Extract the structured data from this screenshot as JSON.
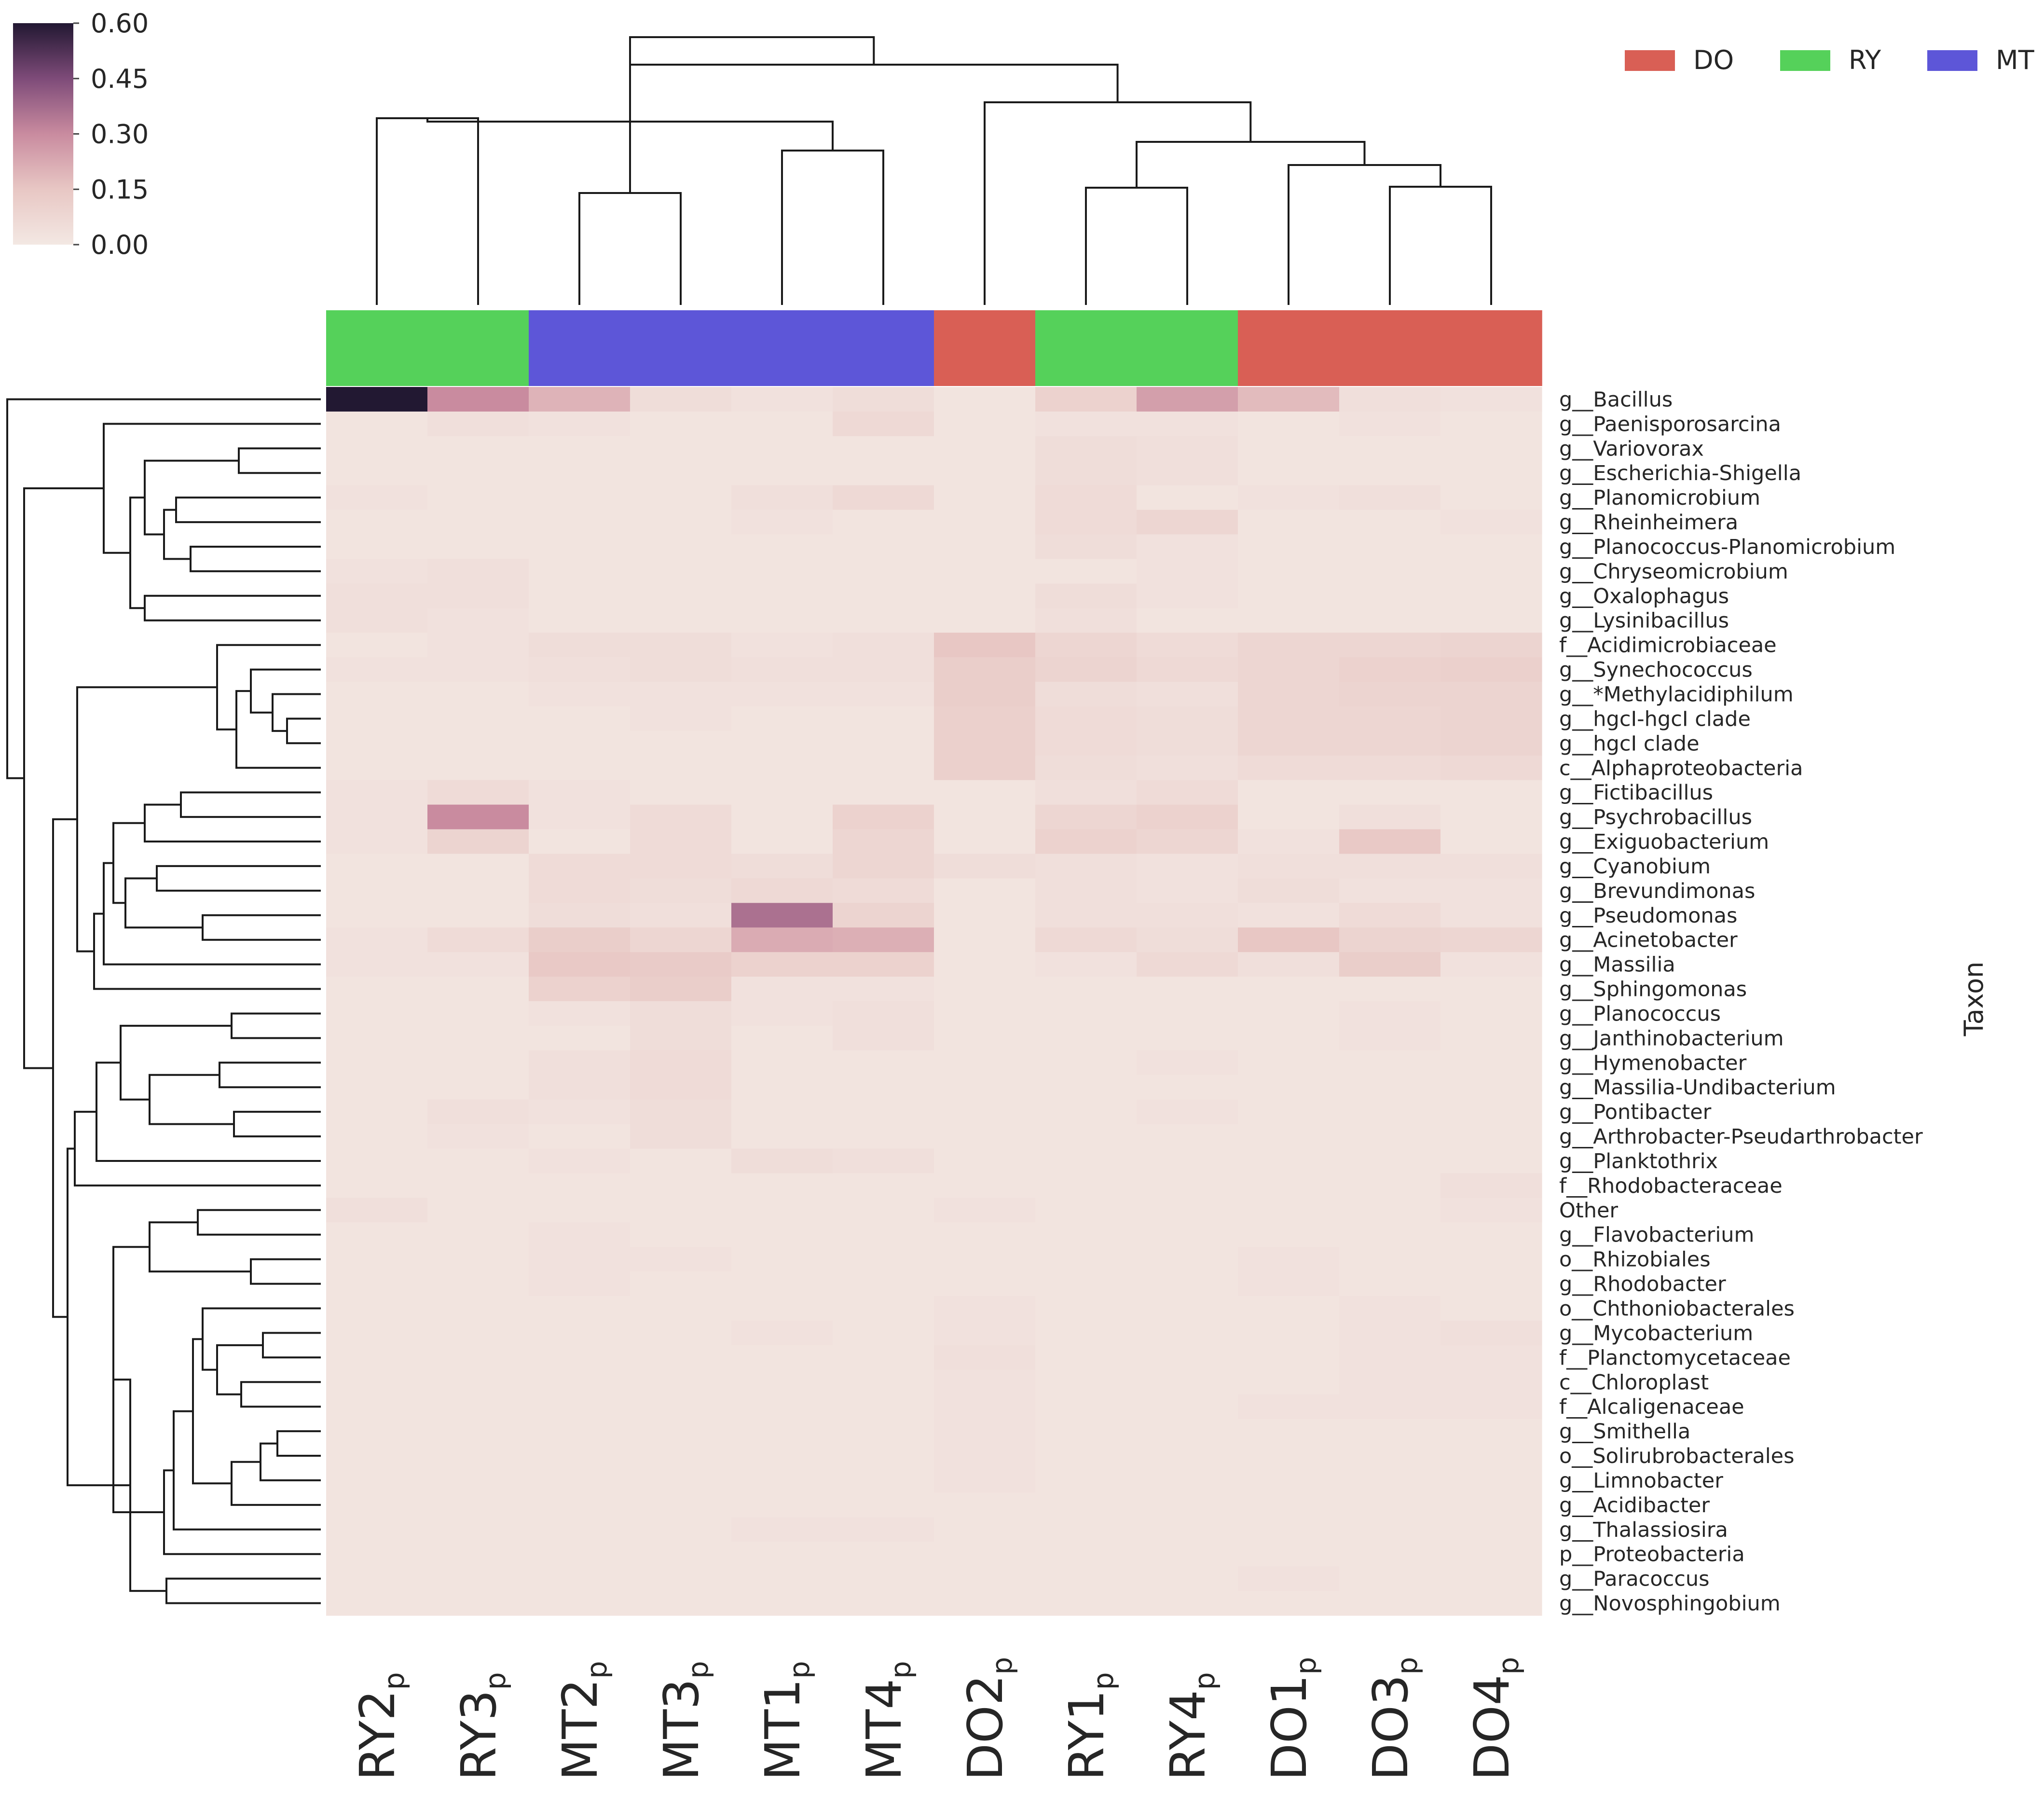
{
  "chart_data": {
    "type": "heatmap",
    "title": "",
    "xlabel": "",
    "ylabel": "Taxon",
    "colorbar": {
      "ticks": [
        "0.00",
        "0.15",
        "0.30",
        "0.45",
        "0.60"
      ],
      "min": 0,
      "max": 0.6,
      "colors": [
        "#f3e8e3",
        "#e8c7c4",
        "#c98b9f",
        "#7e4b79",
        "#221832"
      ]
    },
    "legend": [
      {
        "label": "DO",
        "color": "#d95f55"
      },
      {
        "label": "RY",
        "color": "#55d15a"
      },
      {
        "label": "MT",
        "color": "#5d56d8"
      }
    ],
    "columns": [
      {
        "name": "RY2",
        "sub": "p",
        "group": "RY"
      },
      {
        "name": "RY3",
        "sub": "p",
        "group": "RY"
      },
      {
        "name": "MT2",
        "sub": "p",
        "group": "MT"
      },
      {
        "name": "MT3",
        "sub": "p",
        "group": "MT"
      },
      {
        "name": "MT1",
        "sub": "p",
        "group": "MT"
      },
      {
        "name": "MT4",
        "sub": "p",
        "group": "MT"
      },
      {
        "name": "DO2",
        "sub": "p",
        "group": "DO"
      },
      {
        "name": "RY1",
        "sub": "p",
        "group": "RY"
      },
      {
        "name": "RY4",
        "sub": "p",
        "group": "RY"
      },
      {
        "name": "DO1",
        "sub": "p",
        "group": "DO"
      },
      {
        "name": "DO3",
        "sub": "p",
        "group": "DO"
      },
      {
        "name": "DO4",
        "sub": "p",
        "group": "DO"
      }
    ],
    "rows": [
      "g__Bacillus",
      "g__Paenisporosarcina",
      "g__Variovorax",
      "g__Escherichia-Shigella",
      "g__Planomicrobium",
      "g__Rheinheimera",
      "g__Planococcus-Planomicrobium",
      "g__Chryseomicrobium",
      "g__Oxalophagus",
      "g__Lysinibacillus",
      "f__Acidimicrobiaceae",
      "g__Synechococcus",
      "g__*Methylacidiphilum",
      "g__hgcI-hgcI clade",
      "g__hgcI clade",
      "c__Alphaproteobacteria",
      "g__Fictibacillus",
      "g__Psychrobacillus",
      "g__Exiguobacterium",
      "g__Cyanobium",
      "g__Brevundimonas",
      "g__Pseudomonas",
      "g__Acinetobacter",
      "g__Massilia",
      "g__Sphingomonas",
      "g__Planococcus",
      "g__Janthinobacterium",
      "g__Hymenobacter",
      "g__Massilia-Undibacterium",
      "g__Pontibacter",
      "g__Arthrobacter-Pseudarthrobacter",
      "g__Planktothrix",
      "f__Rhodobacteraceae",
      "Other",
      "g__Flavobacterium",
      "o__Rhizobiales",
      "g__Rhodobacter",
      "o__Chthoniobacterales",
      "g__Mycobacterium",
      "f__Planctomycetaceae",
      "c__Chloroplast",
      "f__Alcaligenaceae",
      "g__Smithella",
      "o__Solirubrobacterales",
      "g__Limnobacter",
      "g__Acidibacter",
      "g__Thalassiosira",
      "p__Proteobacteria",
      "g__Paracoccus",
      "g__Novosphingobium"
    ],
    "values": [
      [
        0.6,
        0.3,
        0.2,
        0.05,
        0.03,
        0.05,
        0.02,
        0.1,
        0.25,
        0.18,
        0.04,
        0.03
      ],
      [
        0.02,
        0.04,
        0.03,
        0.02,
        0.02,
        0.07,
        0.02,
        0.03,
        0.03,
        0.02,
        0.03,
        0.02
      ],
      [
        0.02,
        0.02,
        0.02,
        0.02,
        0.02,
        0.02,
        0.02,
        0.05,
        0.04,
        0.02,
        0.02,
        0.02
      ],
      [
        0.02,
        0.02,
        0.02,
        0.02,
        0.02,
        0.02,
        0.02,
        0.05,
        0.04,
        0.02,
        0.02,
        0.02
      ],
      [
        0.03,
        0.02,
        0.02,
        0.02,
        0.04,
        0.07,
        0.02,
        0.06,
        0.02,
        0.03,
        0.04,
        0.02
      ],
      [
        0.02,
        0.02,
        0.02,
        0.02,
        0.03,
        0.02,
        0.02,
        0.06,
        0.08,
        0.02,
        0.02,
        0.03
      ],
      [
        0.02,
        0.02,
        0.02,
        0.02,
        0.02,
        0.02,
        0.02,
        0.05,
        0.03,
        0.02,
        0.02,
        0.02
      ],
      [
        0.03,
        0.04,
        0.02,
        0.02,
        0.02,
        0.02,
        0.02,
        0.02,
        0.03,
        0.02,
        0.02,
        0.02
      ],
      [
        0.04,
        0.04,
        0.02,
        0.02,
        0.02,
        0.02,
        0.02,
        0.05,
        0.03,
        0.02,
        0.02,
        0.02
      ],
      [
        0.04,
        0.03,
        0.02,
        0.02,
        0.02,
        0.02,
        0.02,
        0.04,
        0.02,
        0.02,
        0.02,
        0.02
      ],
      [
        0.02,
        0.03,
        0.05,
        0.05,
        0.03,
        0.04,
        0.15,
        0.08,
        0.06,
        0.08,
        0.08,
        0.09
      ],
      [
        0.03,
        0.03,
        0.04,
        0.05,
        0.04,
        0.04,
        0.12,
        0.09,
        0.07,
        0.08,
        0.1,
        0.11
      ],
      [
        0.02,
        0.02,
        0.03,
        0.03,
        0.03,
        0.03,
        0.12,
        0.05,
        0.04,
        0.08,
        0.09,
        0.09
      ],
      [
        0.02,
        0.02,
        0.02,
        0.03,
        0.02,
        0.02,
        0.11,
        0.06,
        0.05,
        0.08,
        0.08,
        0.09
      ],
      [
        0.02,
        0.02,
        0.02,
        0.02,
        0.02,
        0.02,
        0.11,
        0.06,
        0.05,
        0.08,
        0.08,
        0.09
      ],
      [
        0.02,
        0.02,
        0.02,
        0.02,
        0.02,
        0.02,
        0.11,
        0.05,
        0.04,
        0.06,
        0.06,
        0.07
      ],
      [
        0.03,
        0.06,
        0.03,
        0.02,
        0.02,
        0.02,
        0.02,
        0.04,
        0.06,
        0.02,
        0.02,
        0.02
      ],
      [
        0.03,
        0.3,
        0.03,
        0.06,
        0.02,
        0.1,
        0.02,
        0.08,
        0.1,
        0.02,
        0.04,
        0.02
      ],
      [
        0.03,
        0.09,
        0.02,
        0.06,
        0.02,
        0.08,
        0.02,
        0.1,
        0.08,
        0.03,
        0.14,
        0.02
      ],
      [
        0.02,
        0.02,
        0.06,
        0.06,
        0.05,
        0.08,
        0.05,
        0.04,
        0.03,
        0.04,
        0.04,
        0.04
      ],
      [
        0.02,
        0.02,
        0.06,
        0.05,
        0.07,
        0.06,
        0.02,
        0.04,
        0.03,
        0.05,
        0.03,
        0.03
      ],
      [
        0.02,
        0.02,
        0.05,
        0.04,
        0.36,
        0.09,
        0.02,
        0.04,
        0.04,
        0.03,
        0.06,
        0.03
      ],
      [
        0.03,
        0.06,
        0.12,
        0.08,
        0.22,
        0.21,
        0.02,
        0.07,
        0.05,
        0.15,
        0.09,
        0.08
      ],
      [
        0.03,
        0.03,
        0.14,
        0.13,
        0.1,
        0.1,
        0.02,
        0.03,
        0.07,
        0.04,
        0.12,
        0.03
      ],
      [
        0.02,
        0.02,
        0.1,
        0.12,
        0.03,
        0.03,
        0.02,
        0.02,
        0.02,
        0.02,
        0.02,
        0.02
      ],
      [
        0.02,
        0.02,
        0.03,
        0.05,
        0.03,
        0.04,
        0.02,
        0.02,
        0.02,
        0.02,
        0.03,
        0.02
      ],
      [
        0.02,
        0.02,
        0.02,
        0.05,
        0.02,
        0.04,
        0.02,
        0.02,
        0.02,
        0.02,
        0.03,
        0.02
      ],
      [
        0.02,
        0.02,
        0.04,
        0.06,
        0.02,
        0.02,
        0.02,
        0.02,
        0.03,
        0.02,
        0.02,
        0.02
      ],
      [
        0.02,
        0.02,
        0.04,
        0.06,
        0.02,
        0.02,
        0.02,
        0.02,
        0.02,
        0.02,
        0.02,
        0.02
      ],
      [
        0.02,
        0.04,
        0.03,
        0.05,
        0.02,
        0.02,
        0.02,
        0.02,
        0.03,
        0.02,
        0.02,
        0.02
      ],
      [
        0.02,
        0.03,
        0.02,
        0.05,
        0.02,
        0.02,
        0.02,
        0.02,
        0.02,
        0.02,
        0.02,
        0.02
      ],
      [
        0.02,
        0.02,
        0.03,
        0.02,
        0.05,
        0.04,
        0.02,
        0.02,
        0.02,
        0.02,
        0.02,
        0.02
      ],
      [
        0.02,
        0.02,
        0.02,
        0.02,
        0.02,
        0.02,
        0.02,
        0.02,
        0.02,
        0.02,
        0.02,
        0.04
      ],
      [
        0.04,
        0.02,
        0.02,
        0.02,
        0.02,
        0.02,
        0.03,
        0.02,
        0.02,
        0.02,
        0.02,
        0.03
      ],
      [
        0.02,
        0.02,
        0.03,
        0.02,
        0.02,
        0.02,
        0.02,
        0.02,
        0.02,
        0.02,
        0.02,
        0.02
      ],
      [
        0.02,
        0.02,
        0.03,
        0.03,
        0.02,
        0.02,
        0.02,
        0.02,
        0.02,
        0.03,
        0.02,
        0.02
      ],
      [
        0.02,
        0.02,
        0.03,
        0.02,
        0.02,
        0.02,
        0.02,
        0.02,
        0.02,
        0.03,
        0.02,
        0.02
      ],
      [
        0.02,
        0.02,
        0.02,
        0.02,
        0.02,
        0.02,
        0.03,
        0.02,
        0.02,
        0.02,
        0.03,
        0.02
      ],
      [
        0.02,
        0.02,
        0.02,
        0.02,
        0.03,
        0.02,
        0.03,
        0.02,
        0.02,
        0.02,
        0.03,
        0.04
      ],
      [
        0.02,
        0.02,
        0.02,
        0.02,
        0.02,
        0.02,
        0.04,
        0.02,
        0.02,
        0.02,
        0.03,
        0.03
      ],
      [
        0.02,
        0.02,
        0.02,
        0.02,
        0.02,
        0.02,
        0.03,
        0.02,
        0.02,
        0.02,
        0.03,
        0.03
      ],
      [
        0.02,
        0.02,
        0.02,
        0.02,
        0.02,
        0.02,
        0.03,
        0.02,
        0.02,
        0.03,
        0.03,
        0.03
      ],
      [
        0.02,
        0.02,
        0.02,
        0.02,
        0.02,
        0.02,
        0.03,
        0.02,
        0.02,
        0.02,
        0.02,
        0.02
      ],
      [
        0.02,
        0.02,
        0.02,
        0.02,
        0.02,
        0.02,
        0.03,
        0.02,
        0.02,
        0.02,
        0.02,
        0.02
      ],
      [
        0.02,
        0.02,
        0.02,
        0.02,
        0.02,
        0.02,
        0.03,
        0.02,
        0.02,
        0.02,
        0.02,
        0.02
      ],
      [
        0.02,
        0.02,
        0.02,
        0.02,
        0.02,
        0.02,
        0.02,
        0.02,
        0.02,
        0.02,
        0.02,
        0.02
      ],
      [
        0.02,
        0.02,
        0.02,
        0.02,
        0.03,
        0.03,
        0.02,
        0.02,
        0.02,
        0.02,
        0.02,
        0.02
      ],
      [
        0.02,
        0.02,
        0.02,
        0.02,
        0.02,
        0.02,
        0.02,
        0.02,
        0.02,
        0.02,
        0.02,
        0.02
      ],
      [
        0.02,
        0.02,
        0.02,
        0.02,
        0.02,
        0.02,
        0.02,
        0.02,
        0.02,
        0.03,
        0.02,
        0.02
      ],
      [
        0.02,
        0.02,
        0.02,
        0.02,
        0.02,
        0.02,
        0.02,
        0.02,
        0.02,
        0.02,
        0.02,
        0.02
      ]
    ]
  }
}
